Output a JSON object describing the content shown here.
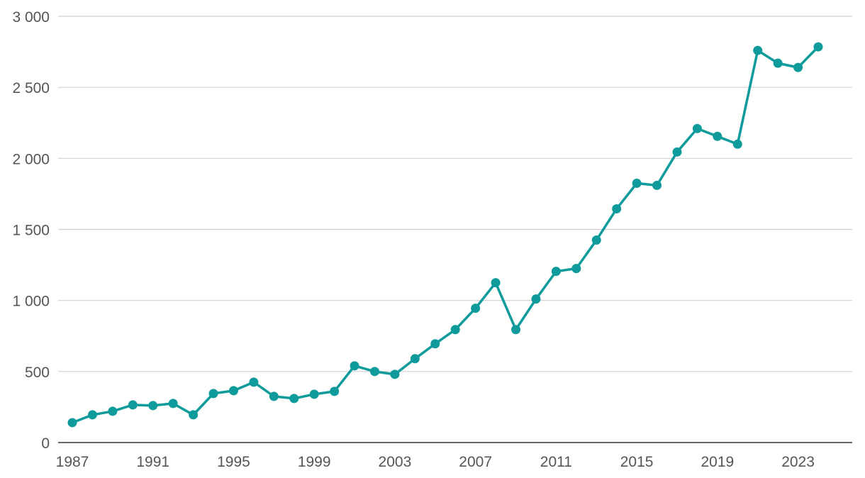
{
  "chart_data": {
    "type": "line",
    "title": "",
    "xlabel": "",
    "ylabel": "",
    "x": [
      1987,
      1988,
      1989,
      1990,
      1991,
      1992,
      1993,
      1994,
      1995,
      1996,
      1997,
      1998,
      1999,
      2000,
      2001,
      2002,
      2003,
      2004,
      2005,
      2006,
      2007,
      2008,
      2009,
      2010,
      2011,
      2012,
      2013,
      2014,
      2015,
      2016,
      2017,
      2018,
      2019,
      2020,
      2021,
      2022,
      2023,
      2024
    ],
    "series": [
      {
        "values": [
          140,
          195,
          220,
          265,
          260,
          275,
          195,
          345,
          365,
          425,
          325,
          310,
          340,
          360,
          540,
          500,
          480,
          590,
          695,
          795,
          945,
          1125,
          795,
          1010,
          1205,
          1225,
          1425,
          1645,
          1825,
          1810,
          2045,
          2210,
          2155,
          2100,
          2760,
          2670,
          2640,
          2785
        ],
        "color": "#0f9b9b"
      }
    ],
    "xlim": [
      1987,
      2025.8
    ],
    "ylim": [
      0,
      3000
    ],
    "x_ticks": [
      1987,
      1991,
      1995,
      1999,
      2003,
      2007,
      2011,
      2015,
      2019,
      2023
    ],
    "x_tick_labels": [
      "1987",
      "1991",
      "1995",
      "1999",
      "2003",
      "2007",
      "2011",
      "2015",
      "2019",
      "2023"
    ],
    "y_ticks": [
      0,
      500,
      1000,
      1500,
      2000,
      2500,
      3000
    ],
    "y_tick_labels": [
      "0",
      "500",
      "1 000",
      "1 500",
      "2 000",
      "2 500",
      "3 000"
    ],
    "grid": true,
    "legend": "none"
  }
}
